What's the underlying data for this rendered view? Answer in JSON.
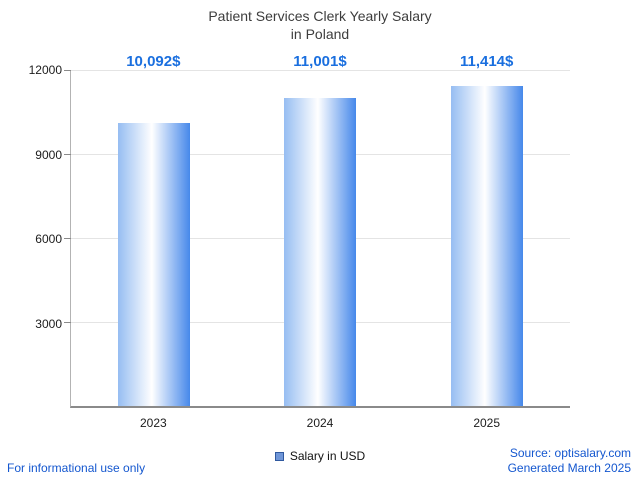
{
  "chart_data": {
    "type": "bar",
    "title": "Patient Services Clerk Yearly Salary in Poland",
    "title_lines": [
      "Patient Services Clerk Yearly Salary",
      "in Poland"
    ],
    "categories": [
      "2023",
      "2024",
      "2025"
    ],
    "values": [
      10092,
      11001,
      11414
    ],
    "value_labels": [
      "10,092$",
      "11,001$",
      "11,414$"
    ],
    "ylim": [
      0,
      12000
    ],
    "yticks": [
      3000,
      6000,
      9000,
      12000
    ],
    "grid": true,
    "legend": {
      "label": "Salary in USD",
      "position": "bottom-center"
    }
  },
  "footer": {
    "disclaimer": "For informational use only",
    "source": "Source: optisalary.com",
    "generated": "Generated March 2025"
  },
  "colors": {
    "accent_blue": "#1a6fdf",
    "footer_blue": "#1457cf",
    "gridline": "#e4e4e4",
    "axis": "#8a8a8a",
    "bar_edge_left": "#96bdf2",
    "bar_mid": "#ffffff",
    "bar_edge_right": "#4688ea",
    "legend_fill": "#6f96d8",
    "legend_border": "#30599f"
  }
}
